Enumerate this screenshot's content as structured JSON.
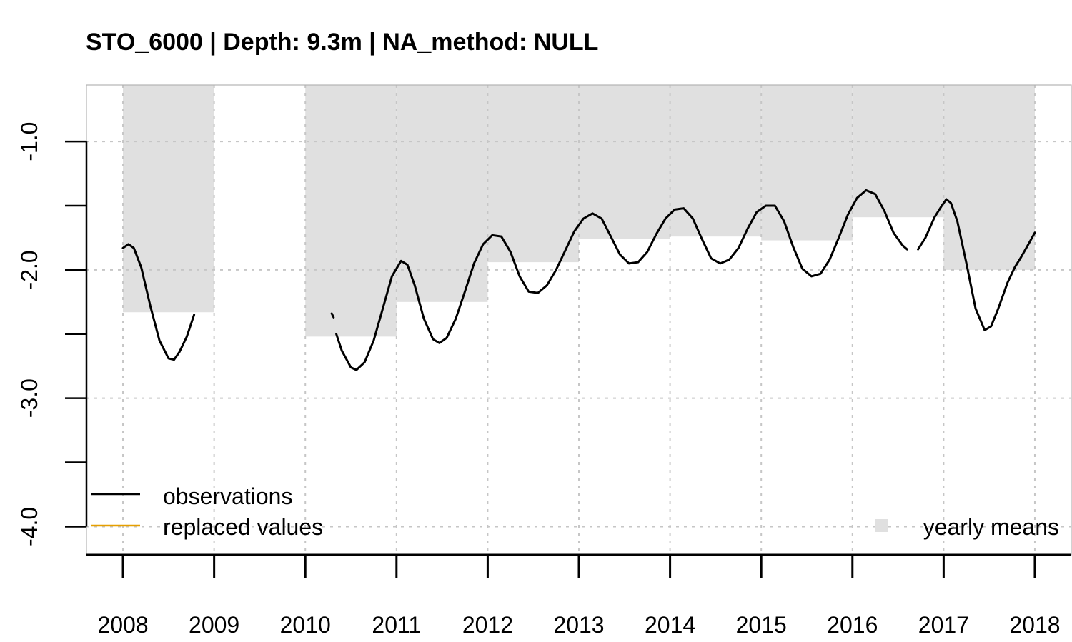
{
  "chart_data": {
    "type": "line",
    "title": "STO_6000 | Depth: 9.3m | NA_method: NULL",
    "xlabel": "",
    "ylabel": "",
    "xlim": [
      2007.6,
      2018.4
    ],
    "ylim": [
      -4.22,
      -0.56
    ],
    "x_ticks": [
      2008,
      2009,
      2010,
      2011,
      2012,
      2013,
      2014,
      2015,
      2016,
      2017,
      2018
    ],
    "x_tick_labels": [
      "2008",
      "2009",
      "2010",
      "2011",
      "2012",
      "2013",
      "2014",
      "2015",
      "2016",
      "2017",
      "2018"
    ],
    "y_ticks": [
      -4.0,
      -3.5,
      -3.0,
      -2.5,
      -2.0,
      -1.5,
      -1.0
    ],
    "y_tick_labels": [
      "-4.0",
      "",
      "-3.0",
      "",
      "-2.0",
      "",
      "-1.0"
    ],
    "grid": true,
    "yearly_means": [
      {
        "year": 2008,
        "value": -2.33
      },
      {
        "year": 2010,
        "value": -2.52
      },
      {
        "year": 2011,
        "value": -2.25
      },
      {
        "year": 2012,
        "value": -1.94
      },
      {
        "year": 2013,
        "value": -1.76
      },
      {
        "year": 2014,
        "value": -1.74
      },
      {
        "year": 2015,
        "value": -1.77
      },
      {
        "year": 2016,
        "value": -1.59
      },
      {
        "year": 2017,
        "value": -2.0
      }
    ],
    "series": [
      {
        "name": "observations",
        "color": "#000000",
        "segments": [
          [
            [
              2008.0,
              -1.83
            ],
            [
              2008.06,
              -1.8
            ],
            [
              2008.12,
              -1.83
            ],
            [
              2008.2,
              -1.98
            ],
            [
              2008.3,
              -2.28
            ],
            [
              2008.4,
              -2.55
            ],
            [
              2008.5,
              -2.69
            ],
            [
              2008.56,
              -2.7
            ],
            [
              2008.62,
              -2.64
            ],
            [
              2008.7,
              -2.52
            ],
            [
              2008.78,
              -2.35
            ]
          ],
          [
            [
              2010.29,
              -2.34
            ],
            [
              2010.31,
              -2.37
            ]
          ],
          [
            [
              2010.34,
              -2.5
            ],
            [
              2010.4,
              -2.63
            ],
            [
              2010.5,
              -2.76
            ],
            [
              2010.56,
              -2.78
            ],
            [
              2010.65,
              -2.72
            ],
            [
              2010.75,
              -2.55
            ],
            [
              2010.85,
              -2.3
            ],
            [
              2010.95,
              -2.05
            ],
            [
              2011.05,
              -1.93
            ],
            [
              2011.12,
              -1.96
            ],
            [
              2011.2,
              -2.12
            ],
            [
              2011.3,
              -2.38
            ],
            [
              2011.4,
              -2.54
            ],
            [
              2011.47,
              -2.57
            ],
            [
              2011.55,
              -2.53
            ],
            [
              2011.65,
              -2.38
            ],
            [
              2011.75,
              -2.17
            ],
            [
              2011.85,
              -1.95
            ],
            [
              2011.95,
              -1.8
            ],
            [
              2012.05,
              -1.73
            ],
            [
              2012.15,
              -1.74
            ],
            [
              2012.25,
              -1.86
            ],
            [
              2012.35,
              -2.05
            ],
            [
              2012.45,
              -2.17
            ],
            [
              2012.55,
              -2.18
            ],
            [
              2012.65,
              -2.12
            ],
            [
              2012.75,
              -2.0
            ],
            [
              2012.85,
              -1.85
            ],
            [
              2012.95,
              -1.7
            ],
            [
              2013.05,
              -1.6
            ],
            [
              2013.15,
              -1.56
            ],
            [
              2013.25,
              -1.6
            ],
            [
              2013.35,
              -1.74
            ],
            [
              2013.45,
              -1.88
            ],
            [
              2013.55,
              -1.95
            ],
            [
              2013.65,
              -1.94
            ],
            [
              2013.75,
              -1.86
            ],
            [
              2013.85,
              -1.72
            ],
            [
              2013.95,
              -1.6
            ],
            [
              2014.05,
              -1.53
            ],
            [
              2014.15,
              -1.52
            ],
            [
              2014.25,
              -1.6
            ],
            [
              2014.35,
              -1.76
            ],
            [
              2014.45,
              -1.91
            ],
            [
              2014.55,
              -1.95
            ],
            [
              2014.65,
              -1.92
            ],
            [
              2014.75,
              -1.83
            ],
            [
              2014.85,
              -1.68
            ],
            [
              2014.95,
              -1.55
            ],
            [
              2015.05,
              -1.5
            ],
            [
              2015.15,
              -1.5
            ],
            [
              2015.25,
              -1.62
            ],
            [
              2015.35,
              -1.82
            ],
            [
              2015.45,
              -1.99
            ],
            [
              2015.55,
              -2.05
            ],
            [
              2015.65,
              -2.03
            ],
            [
              2015.75,
              -1.92
            ],
            [
              2015.85,
              -1.75
            ],
            [
              2015.95,
              -1.57
            ],
            [
              2016.05,
              -1.44
            ],
            [
              2016.15,
              -1.38
            ],
            [
              2016.25,
              -1.41
            ],
            [
              2016.35,
              -1.54
            ],
            [
              2016.45,
              -1.71
            ],
            [
              2016.55,
              -1.81
            ],
            [
              2016.6,
              -1.84
            ]
          ],
          [
            [
              2016.72,
              -1.84
            ],
            [
              2016.8,
              -1.75
            ],
            [
              2016.9,
              -1.59
            ],
            [
              2016.98,
              -1.5
            ],
            [
              2017.03,
              -1.45
            ],
            [
              2017.08,
              -1.48
            ],
            [
              2017.15,
              -1.62
            ],
            [
              2017.25,
              -1.95
            ],
            [
              2017.35,
              -2.3
            ],
            [
              2017.45,
              -2.47
            ],
            [
              2017.52,
              -2.44
            ],
            [
              2017.6,
              -2.3
            ],
            [
              2017.7,
              -2.1
            ],
            [
              2017.78,
              -1.98
            ],
            [
              2017.85,
              -1.9
            ],
            [
              2017.93,
              -1.8
            ],
            [
              2018.0,
              -1.71
            ]
          ]
        ]
      },
      {
        "name": "replaced values",
        "color": "#E69F00",
        "segments": []
      }
    ],
    "legend": {
      "position": "bottom-left",
      "items": [
        {
          "label": "observations",
          "color": "#000000"
        },
        {
          "label": "replaced values",
          "color": "#E69F00"
        }
      ],
      "means_position": "bottom-right",
      "means_label": "yearly means",
      "means_color": "#e0e0e0"
    },
    "colors": {
      "observations": "#000000",
      "replaced": "#E69F00",
      "means_fill": "#e0e0e0",
      "grid": "#c6c6c6",
      "box": "#b3b3b3"
    }
  }
}
